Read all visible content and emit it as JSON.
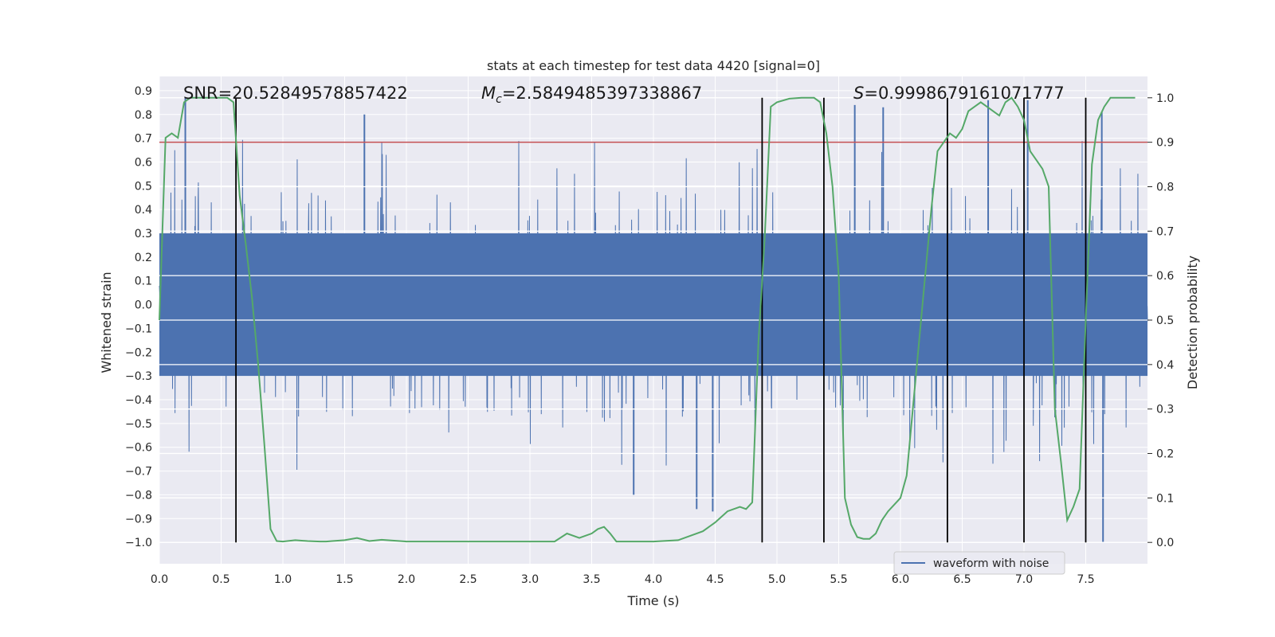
{
  "chart_data": {
    "type": "line",
    "title": "stats at each timestep for test data 4420 [signal=0]",
    "xlabel": "Time (s)",
    "ylabel": "Whitened strain",
    "y2label": "Detection probability",
    "xlim": [
      0.0,
      8.0
    ],
    "ylim": [
      -1.09,
      0.96
    ],
    "y2lim": [
      -0.048,
      1.048
    ],
    "xticks": [
      "0.0",
      "0.5",
      "1.0",
      "1.5",
      "2.0",
      "2.5",
      "3.0",
      "3.5",
      "4.0",
      "4.5",
      "5.0",
      "5.5",
      "6.0",
      "6.5",
      "7.0",
      "7.5"
    ],
    "yticks": [
      "0.9",
      "0.8",
      "0.7",
      "0.6",
      "0.5",
      "0.4",
      "0.3",
      "0.2",
      "0.1",
      "0.0",
      "-0.1",
      "-0.2",
      "-0.3",
      "-0.4",
      "-0.5",
      "-0.6",
      "-0.7",
      "-0.8",
      "-0.9",
      "-1.0"
    ],
    "y2ticks": [
      "1.0",
      "0.9",
      "0.8",
      "0.7",
      "0.6",
      "0.5",
      "0.4",
      "0.3",
      "0.2",
      "0.1",
      "0.0"
    ],
    "annotations": {
      "snr": "SNR=20.52849578857422",
      "mc_value": "=2.5849485397338867",
      "s_value": "=0.9998679161071777"
    },
    "threshold": 0.9,
    "event_lines_x": [
      0.62,
      4.88,
      5.38,
      6.38,
      7.0,
      7.5
    ],
    "legend": [
      "waveform with noise"
    ],
    "legend_position": "lower-right",
    "waveform": {
      "name": "waveform with noise",
      "color": "#4c72b0",
      "x_range": [
        0.0,
        8.0
      ],
      "core_amplitude": 0.3,
      "notable_peaks": [
        {
          "x": 0.21,
          "y": 0.87
        },
        {
          "x": 1.66,
          "y": 0.8
        },
        {
          "x": 3.84,
          "y": -0.8
        },
        {
          "x": 4.35,
          "y": -0.86
        },
        {
          "x": 4.48,
          "y": -0.87
        },
        {
          "x": 5.63,
          "y": 0.84
        },
        {
          "x": 5.86,
          "y": 0.83
        },
        {
          "x": 6.71,
          "y": 0.86
        },
        {
          "x": 7.03,
          "y": 0.86
        },
        {
          "x": 7.63,
          "y": 0.81
        },
        {
          "x": 7.64,
          "y": -1.0
        }
      ]
    },
    "probability": {
      "name": "Detection probability",
      "color": "#55a868",
      "x": [
        0.0,
        0.05,
        0.1,
        0.15,
        0.2,
        0.25,
        0.3,
        0.35,
        0.4,
        0.45,
        0.5,
        0.55,
        0.6,
        0.65,
        0.7,
        0.75,
        0.8,
        0.85,
        0.9,
        0.95,
        1.0,
        1.1,
        1.2,
        1.3,
        1.35,
        1.4,
        1.5,
        1.6,
        1.7,
        1.8,
        1.9,
        2.0,
        2.1,
        2.2,
        2.5,
        3.0,
        3.2,
        3.3,
        3.4,
        3.5,
        3.55,
        3.6,
        3.65,
        3.7,
        3.8,
        4.0,
        4.2,
        4.3,
        4.4,
        4.5,
        4.6,
        4.7,
        4.75,
        4.8,
        4.85,
        4.9,
        4.95,
        5.0,
        5.1,
        5.2,
        5.3,
        5.35,
        5.4,
        5.45,
        5.5,
        5.55,
        5.6,
        5.65,
        5.7,
        5.75,
        5.8,
        5.85,
        5.9,
        6.0,
        6.05,
        6.1,
        6.15,
        6.2,
        6.25,
        6.3,
        6.35,
        6.4,
        6.45,
        6.5,
        6.55,
        6.6,
        6.65,
        6.7,
        6.75,
        6.8,
        6.85,
        6.9,
        6.95,
        7.0,
        7.05,
        7.1,
        7.15,
        7.2,
        7.25,
        7.3,
        7.35,
        7.4,
        7.45,
        7.5,
        7.55,
        7.6,
        7.65,
        7.7,
        7.75,
        7.8,
        7.85,
        7.9
      ],
      "y": [
        0.5,
        0.91,
        0.92,
        0.91,
        0.99,
        1.0,
        1.0,
        1.0,
        1.0,
        1.0,
        1.0,
        1.0,
        0.99,
        0.78,
        0.67,
        0.55,
        0.4,
        0.22,
        0.03,
        0.003,
        0.002,
        0.005,
        0.003,
        0.002,
        0.002,
        0.003,
        0.005,
        0.01,
        0.003,
        0.006,
        0.004,
        0.002,
        0.002,
        0.002,
        0.002,
        0.002,
        0.002,
        0.02,
        0.01,
        0.02,
        0.03,
        0.035,
        0.02,
        0.002,
        0.002,
        0.002,
        0.005,
        0.015,
        0.025,
        0.045,
        0.07,
        0.08,
        0.075,
        0.09,
        0.45,
        0.68,
        0.98,
        0.99,
        0.998,
        1.0,
        1.0,
        0.99,
        0.92,
        0.8,
        0.6,
        0.1,
        0.04,
        0.012,
        0.008,
        0.008,
        0.02,
        0.05,
        0.07,
        0.1,
        0.15,
        0.3,
        0.45,
        0.6,
        0.75,
        0.88,
        0.9,
        0.92,
        0.91,
        0.93,
        0.97,
        0.98,
        0.99,
        0.98,
        0.97,
        0.96,
        0.99,
        1.0,
        0.98,
        0.95,
        0.88,
        0.86,
        0.84,
        0.8,
        0.3,
        0.18,
        0.05,
        0.08,
        0.12,
        0.5,
        0.85,
        0.95,
        0.98,
        1.0,
        1.0,
        1.0,
        1.0,
        1.0
      ]
    }
  }
}
